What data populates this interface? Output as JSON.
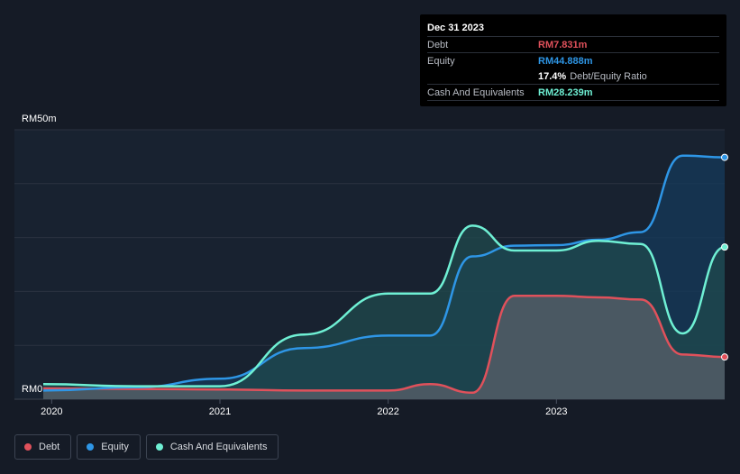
{
  "chart_data": {
    "type": "area",
    "ylabel_top": "RM50m",
    "ylabel_zero": "RM0",
    "ylim": [
      0,
      50
    ],
    "xlim": [
      2019.95,
      2024.0
    ],
    "x_ticks": [
      {
        "value": 2020,
        "label": "2020"
      },
      {
        "value": 2021,
        "label": "2021"
      },
      {
        "value": 2022,
        "label": "2022"
      },
      {
        "value": 2023,
        "label": "2023"
      }
    ],
    "series": [
      {
        "name": "Debt",
        "color": "#e0515b",
        "fill": "#5a5f69",
        "points": [
          [
            2019.95,
            2.0
          ],
          [
            2020.5,
            1.9
          ],
          [
            2021.0,
            1.8
          ],
          [
            2021.5,
            1.6
          ],
          [
            2022.0,
            1.6
          ],
          [
            2022.25,
            2.8
          ],
          [
            2022.5,
            1.2
          ],
          [
            2022.75,
            19.2
          ],
          [
            2023.0,
            19.2
          ],
          [
            2023.25,
            18.9
          ],
          [
            2023.5,
            18.5
          ],
          [
            2023.75,
            8.3
          ],
          [
            2024.0,
            7.831
          ]
        ]
      },
      {
        "name": "Equity",
        "color": "#2e96e6",
        "fill": "#143a5a",
        "points": [
          [
            2019.95,
            1.6
          ],
          [
            2020.5,
            2.2
          ],
          [
            2021.0,
            3.8
          ],
          [
            2021.5,
            9.5
          ],
          [
            2022.0,
            11.8
          ],
          [
            2022.25,
            11.8
          ],
          [
            2022.5,
            26.5
          ],
          [
            2022.75,
            28.5
          ],
          [
            2023.0,
            28.6
          ],
          [
            2023.25,
            29.6
          ],
          [
            2023.5,
            31.0
          ],
          [
            2023.75,
            45.2
          ],
          [
            2024.0,
            44.888
          ]
        ]
      },
      {
        "name": "Cash And Equivalents",
        "color": "#6ff0d4",
        "fill": "#1f4a4c",
        "points": [
          [
            2019.95,
            2.8
          ],
          [
            2020.5,
            2.4
          ],
          [
            2021.0,
            2.4
          ],
          [
            2021.5,
            12.0
          ],
          [
            2022.0,
            19.6
          ],
          [
            2022.25,
            19.6
          ],
          [
            2022.5,
            32.2
          ],
          [
            2022.75,
            27.6
          ],
          [
            2023.0,
            27.6
          ],
          [
            2023.25,
            29.4
          ],
          [
            2023.5,
            28.8
          ],
          [
            2023.75,
            12.2
          ],
          [
            2024.0,
            28.239
          ]
        ]
      }
    ]
  },
  "tooltip": {
    "date": "Dec 31 2023",
    "debt_label": "Debt",
    "debt_value": "RM7.831m",
    "equity_label": "Equity",
    "equity_value": "RM44.888m",
    "ratio_value": "17.4%",
    "ratio_label": "Debt/Equity Ratio",
    "cash_label": "Cash And Equivalents",
    "cash_value": "RM28.239m",
    "colors": {
      "debt": "#e0515b",
      "equity": "#2e96e6",
      "cash": "#6ff0d4"
    }
  },
  "legend": [
    {
      "label": "Debt",
      "color": "#e0515b"
    },
    {
      "label": "Equity",
      "color": "#2e96e6"
    },
    {
      "label": "Cash And Equivalents",
      "color": "#6ff0d4"
    }
  ]
}
